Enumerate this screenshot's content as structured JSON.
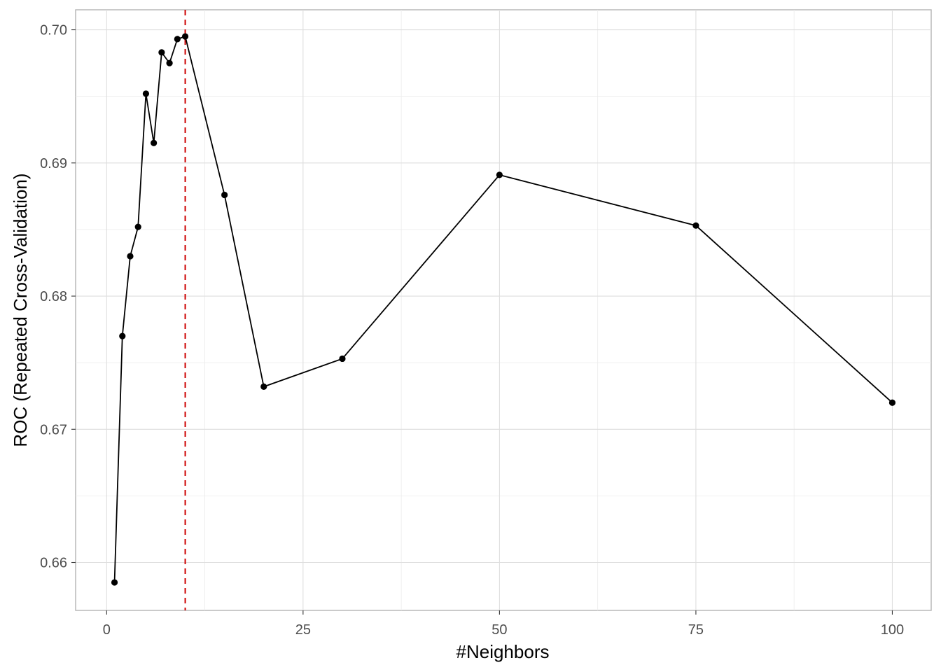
{
  "chart_data": {
    "type": "line",
    "title": "",
    "xlabel": "#Neighbors",
    "ylabel": "ROC (Repeated Cross-Validation)",
    "xlim": [
      -3.95,
      104.95
    ],
    "ylim": [
      0.6564,
      0.7015
    ],
    "x_ticks": [
      0,
      25,
      50,
      75,
      100
    ],
    "x_tick_labels": [
      "0",
      "25",
      "50",
      "75",
      "100"
    ],
    "y_ticks": [
      0.66,
      0.67,
      0.68,
      0.69,
      0.7
    ],
    "y_tick_labels": [
      "0.66",
      "0.67",
      "0.68",
      "0.69",
      "0.70"
    ],
    "x_minor_ticks": [
      12.5,
      37.5,
      62.5,
      87.5
    ],
    "y_minor_ticks": [
      0.665,
      0.675,
      0.685,
      0.695
    ],
    "grid": true,
    "series": [
      {
        "x": [
          1,
          2,
          3,
          4,
          5,
          6,
          7,
          8,
          9,
          10,
          15,
          20,
          30,
          50,
          75,
          100
        ],
        "values": [
          0.6585,
          0.677,
          0.683,
          0.6852,
          0.6952,
          0.6915,
          0.6983,
          0.6975,
          0.6993,
          0.6995,
          0.6876,
          0.6732,
          0.6753,
          0.6891,
          0.6853,
          0.672
        ],
        "color": "#000000"
      }
    ],
    "reference_line": {
      "orientation": "vertical",
      "x": 10,
      "style": "dashed",
      "color": "#cc0000"
    }
  }
}
